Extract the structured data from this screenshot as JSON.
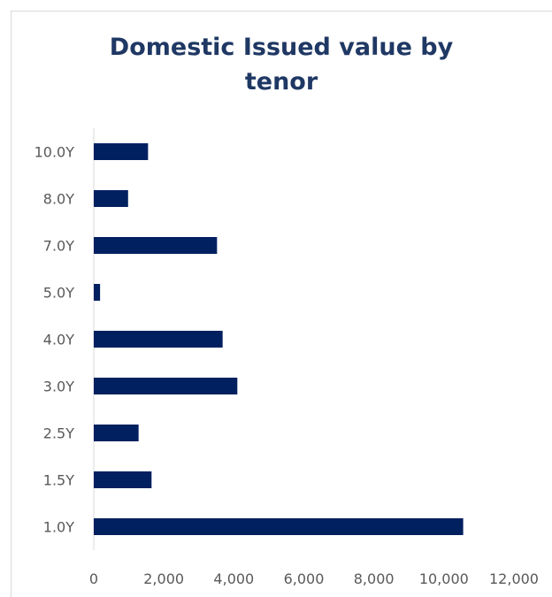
{
  "chart_data": {
    "type": "bar",
    "orientation": "horizontal",
    "title_lines": [
      "Domestic Issued value by",
      "tenor"
    ],
    "categories": [
      "1.0Y",
      "1.5Y",
      "2.5Y",
      "3.0Y",
      "4.0Y",
      "5.0Y",
      "7.0Y",
      "8.0Y",
      "10.0Y"
    ],
    "values": [
      10550,
      1650,
      1280,
      4100,
      3680,
      180,
      3520,
      980,
      1550
    ],
    "xlim": [
      0,
      12000
    ],
    "xticks": [
      "0",
      "2,000",
      "4,000",
      "6,000",
      "8,000",
      "10,000",
      "12,000"
    ],
    "xtick_values": [
      0,
      2000,
      4000,
      6000,
      8000,
      10000,
      12000
    ],
    "grid": false,
    "legend": "none",
    "bar_color": "#002060",
    "axis_color": "#d9d9d9"
  }
}
